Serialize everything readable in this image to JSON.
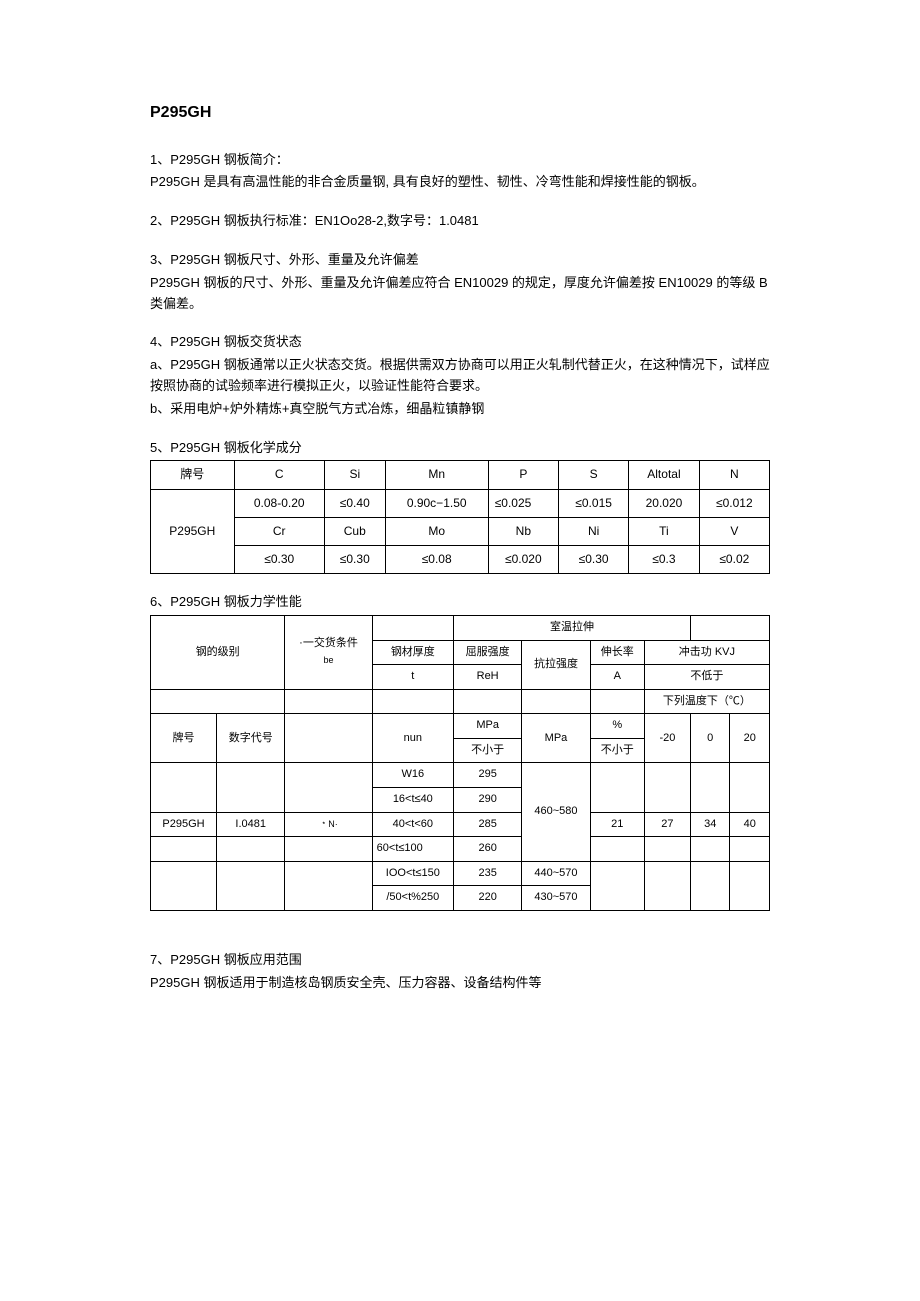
{
  "title": "P295GH",
  "section1": {
    "heading": "1、P295GH 钢板简介：",
    "text": "P295GH 是具有高温性能的非合金质量钢, 具有良好的塑性、韧性、冷弯性能和焊接性能的钢板。"
  },
  "section2": {
    "heading": "2、P295GH 钢板执行标准：EN1Oo28-2,数字号：1.0481"
  },
  "section3": {
    "heading": "3、P295GH 钢板尺寸、外形、重量及允许偏差",
    "text": "P295GH 钢板的尺寸、外形、重量及允许偏差应符合 EN10029 的规定，厚度允许偏差按 EN10029 的等级 B 类偏差。"
  },
  "section4": {
    "heading": "4、P295GH 钢板交货状态",
    "a": "a、P295GH 钢板通常以正火状态交货。根据供需双方协商可以用正火轧制代替正火，在这种情况下，试样应按照协商的试验频率进行模拟正火，以验证性能符合要求。",
    "b": "b、采用电炉+炉外精炼+真空脱气方式冶炼，细晶粒镇静钢"
  },
  "section5": {
    "heading": "5、P295GH 钢板化学成分",
    "headers": [
      "牌号",
      "C",
      "Si",
      "Mn",
      "P",
      "S",
      "Altotal",
      "N"
    ],
    "row1": [
      "0.08-0.20",
      "≤0.40",
      "0.90c−1.50",
      "≤0.025",
      "≤0.015",
      "20.020",
      "≤0.012"
    ],
    "rowlabel": "P295GH",
    "row2h": [
      "Cr",
      "Cub",
      "Mo",
      "Nb",
      "Ni",
      "Ti",
      "V"
    ],
    "row2": [
      "≤0.30",
      "≤0.30",
      "≤0.08",
      "≤0.020",
      "≤0.30",
      "≤0.3",
      "≤0.02"
    ]
  },
  "section6": {
    "heading": "6、P295GH 钢板力学性能",
    "top_tensile": "室温拉伸",
    "steel_grade": "钢的级别",
    "delivery": "·一交货条件",
    "delivery_sub": "be",
    "thickness": "钢材厚度",
    "thickness_unit": "t",
    "yield": "屈服强度",
    "yield_unit": "ReH",
    "tensile": "抗拉强度",
    "elongation": "伸长率",
    "elongation_unit": "A",
    "impact": "冲击功 KVJ",
    "impact_sub": "不低于",
    "temp_label": "下列温度下（℃）",
    "brand": "牌号",
    "numcode": "数字代号",
    "mpa": "MPa",
    "notless": "不小于",
    "percent": "%",
    "nun": "nun",
    "t1": "-20",
    "t2": "0",
    "t3": "20",
    "rows": [
      {
        "thick": "W16",
        "reh": "295",
        "tensile": "",
        "elong": "",
        "kv20": "",
        "kv0": "",
        "kv_20": ""
      },
      {
        "thick": "16<t≤40",
        "reh": "290",
        "tensile": "",
        "elong": "",
        "kv20": "",
        "kv0": "",
        "kv_20": ""
      },
      {
        "thick": "40<t<60",
        "reh": "285",
        "tensile": "460~580",
        "elong": "21",
        "kv20": "27",
        "kv0": "34",
        "kv_20": "40"
      },
      {
        "thick": "60<t≤100",
        "reh": "260",
        "tensile": "",
        "elong": "",
        "kv20": "",
        "kv0": "",
        "kv_20": ""
      },
      {
        "thick": "IOO<t≤150",
        "reh": "235",
        "tensile": "440~570",
        "elong": "",
        "kv20": "",
        "kv0": "",
        "kv_20": ""
      },
      {
        "thick": "/50<t%250",
        "reh": "220",
        "tensile": "430~570",
        "elong": "",
        "kv20": "",
        "kv0": "",
        "kv_20": ""
      }
    ],
    "brand_val": "P295GH",
    "numcode_val": "I.0481",
    "delivery_val": "﹡N·"
  },
  "section7": {
    "heading": "7、P295GH 钢板应用范围",
    "text": "P295GH 钢板适用于制造核岛钢质安全壳、压力容器、设备结构件等"
  }
}
